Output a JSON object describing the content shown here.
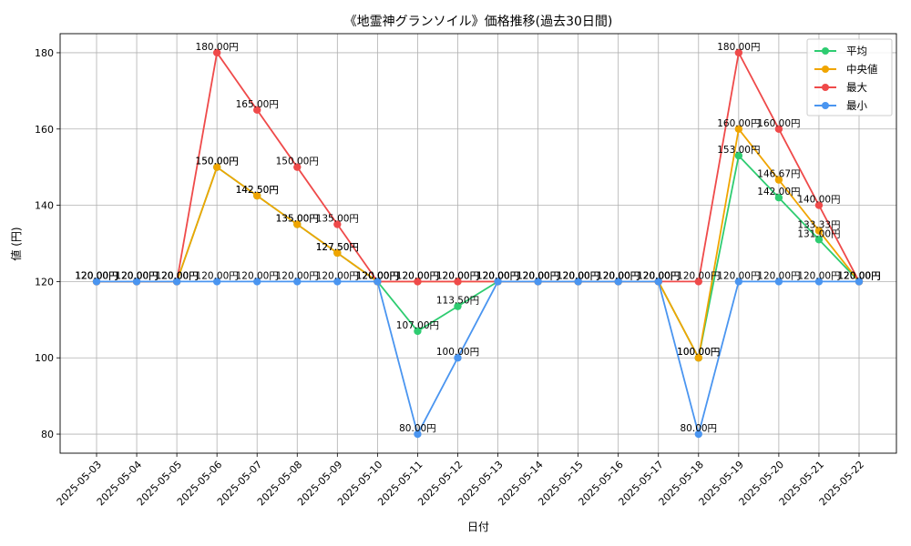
{
  "chart_data": {
    "type": "line",
    "title": "《地霊神グランソイル》価格推移(過去30日間)",
    "xlabel": "日付",
    "ylabel": "値 (円)",
    "ylim": [
      75,
      185
    ],
    "yticks": [
      80,
      100,
      120,
      140,
      160,
      180
    ],
    "grid": true,
    "legend_position": "top-right",
    "value_suffix": "円",
    "categories": [
      "2025-05-03",
      "2025-05-04",
      "2025-05-05",
      "2025-05-06",
      "2025-05-07",
      "2025-05-08",
      "2025-05-09",
      "2025-05-10",
      "2025-05-11",
      "2025-05-12",
      "2025-05-13",
      "2025-05-14",
      "2025-05-15",
      "2025-05-16",
      "2025-05-17",
      "2025-05-18",
      "2025-05-19",
      "2025-05-20",
      "2025-05-21",
      "2025-05-22"
    ],
    "series": [
      {
        "name": "平均",
        "color": "#2ecc71",
        "values": [
          120,
          120,
          120,
          150,
          142.5,
          135,
          127.5,
          120,
          107,
          113.5,
          120,
          120,
          120,
          120,
          120,
          100,
          153,
          142,
          131,
          120
        ]
      },
      {
        "name": "中央値",
        "color": "#f0a500",
        "values": [
          120,
          120,
          120,
          150,
          142.5,
          135,
          127.5,
          120,
          120,
          120,
          120,
          120,
          120,
          120,
          120,
          100,
          160,
          146.67,
          133.33,
          120
        ]
      },
      {
        "name": "最大",
        "color": "#ef4a4a",
        "values": [
          120,
          120,
          120,
          180,
          165,
          150,
          135,
          120,
          120,
          120,
          120,
          120,
          120,
          120,
          120,
          120,
          180,
          160,
          140,
          120
        ]
      },
      {
        "name": "最小",
        "color": "#4a95f0",
        "values": [
          120,
          120,
          120,
          120,
          120,
          120,
          120,
          120,
          80,
          100,
          120,
          120,
          120,
          120,
          120,
          80,
          120,
          120,
          120,
          120
        ]
      }
    ]
  }
}
